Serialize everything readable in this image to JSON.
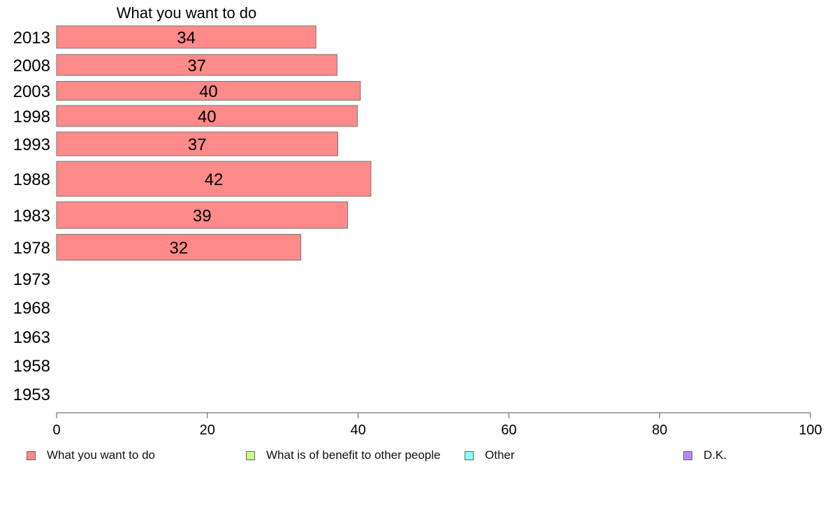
{
  "chart_data": {
    "type": "bar",
    "orientation": "horizontal",
    "title": "What you want to do",
    "categories": [
      "2013",
      "2008",
      "2003",
      "1998",
      "1993",
      "1988",
      "1983",
      "1978",
      "1973",
      "1968",
      "1963",
      "1958",
      "1953"
    ],
    "series": [
      {
        "name": "What you want to do",
        "color": "#ff8a8a",
        "values": [
          34,
          37,
          40,
          40,
          37,
          42,
          39,
          32,
          null,
          null,
          null,
          null,
          null
        ]
      },
      {
        "name": "What is of benefit to other people",
        "color": "#c8ff8a",
        "values": [
          null,
          null,
          null,
          null,
          null,
          null,
          null,
          null,
          null,
          null,
          null,
          null,
          null
        ]
      },
      {
        "name": "Other",
        "color": "#8affff",
        "values": [
          null,
          null,
          null,
          null,
          null,
          null,
          null,
          null,
          null,
          null,
          null,
          null,
          null
        ]
      },
      {
        "name": "D.K.",
        "color": "#b48aff",
        "values": [
          null,
          null,
          null,
          null,
          null,
          null,
          null,
          null,
          null,
          null,
          null,
          null,
          null
        ]
      }
    ],
    "precise_values": [
      34.4,
      37.2,
      40.3,
      39.9,
      37.3,
      41.7,
      38.6,
      32.4
    ],
    "xlim": [
      0,
      100
    ],
    "xticks": [
      0,
      20,
      40,
      60,
      80,
      100
    ],
    "grid": false,
    "legend_position": "bottom"
  }
}
